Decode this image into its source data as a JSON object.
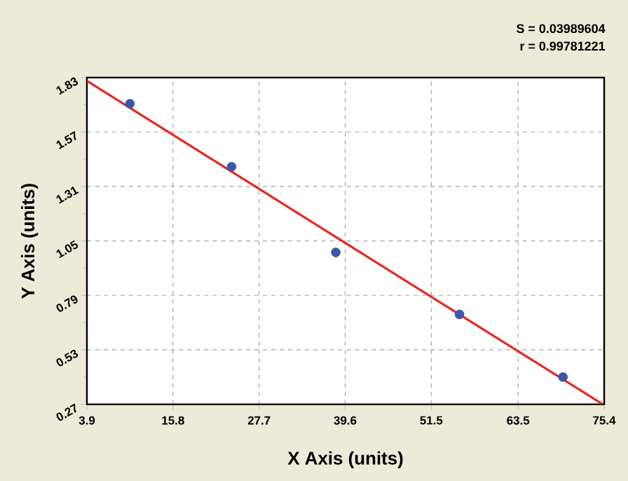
{
  "chart_data": {
    "type": "scatter",
    "xlabel": "X Axis (units)",
    "ylabel": "Y Axis (units)",
    "annotations": [
      "S = 0.03989604",
      "r = 0.99781221"
    ],
    "xlim": [
      3.9,
      75.4
    ],
    "ylim": [
      0.27,
      1.83
    ],
    "xticks": [
      3.9,
      15.8,
      27.7,
      39.6,
      51.5,
      63.5,
      75.4
    ],
    "yticks": [
      0.27,
      0.53,
      0.79,
      1.05,
      1.31,
      1.57,
      1.83
    ],
    "grid": true,
    "series": [
      {
        "color": "#3b57a8",
        "marker": "circle",
        "x": [
          9.85,
          23.9,
          38.3,
          55.4,
          69.7
        ],
        "values": [
          1.705,
          1.404,
          0.995,
          0.699,
          0.4
        ]
      },
      {
        "type": "line",
        "color": "#e8261e",
        "marker": "none",
        "line_style": "solid",
        "x": [
          3.9,
          75.2
        ],
        "values": [
          1.814,
          0.27
        ]
      }
    ]
  }
}
